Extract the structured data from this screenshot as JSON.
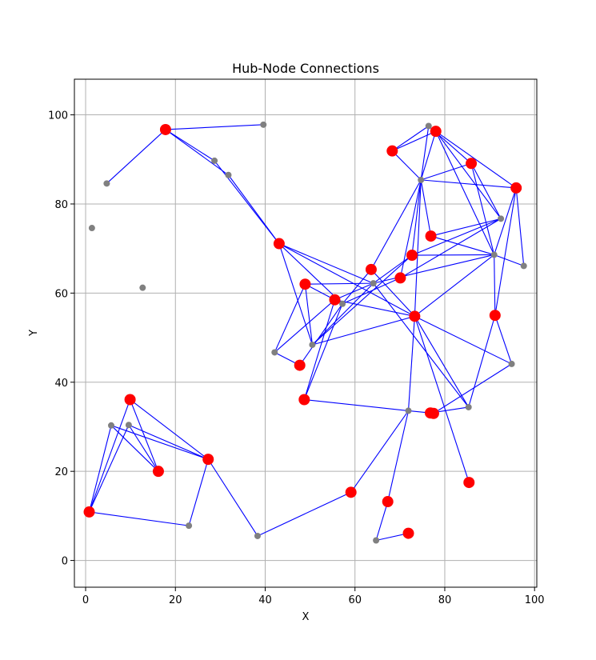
{
  "chart_data": {
    "type": "scatter",
    "title": "Hub-Node Connections",
    "xlabel": "X",
    "ylabel": "Y",
    "xlim": [
      -2.5,
      100.5
    ],
    "ylim": [
      -6,
      108
    ],
    "xticks": [
      0,
      20,
      40,
      60,
      80,
      100
    ],
    "yticks": [
      0,
      20,
      40,
      60,
      80,
      100
    ],
    "grid": true,
    "colors": {
      "hub": "#ff0000",
      "node": "#808080",
      "edge": "#0000ff"
    },
    "hubs": [
      {
        "x": 17.8,
        "y": 96.7
      },
      {
        "x": 43.1,
        "y": 71.1
      },
      {
        "x": 48.9,
        "y": 62.0
      },
      {
        "x": 55.5,
        "y": 58.5
      },
      {
        "x": 63.6,
        "y": 65.3
      },
      {
        "x": 70.1,
        "y": 63.4
      },
      {
        "x": 72.7,
        "y": 68.5
      },
      {
        "x": 73.3,
        "y": 54.8
      },
      {
        "x": 76.9,
        "y": 72.8
      },
      {
        "x": 68.3,
        "y": 91.9
      },
      {
        "x": 78.0,
        "y": 96.3
      },
      {
        "x": 85.9,
        "y": 89.1
      },
      {
        "x": 95.9,
        "y": 83.6
      },
      {
        "x": 91.2,
        "y": 55.0
      },
      {
        "x": 47.7,
        "y": 43.8
      },
      {
        "x": 48.7,
        "y": 36.1
      },
      {
        "x": 76.8,
        "y": 33.1
      },
      {
        "x": 77.5,
        "y": 33.0
      },
      {
        "x": 85.4,
        "y": 17.5
      },
      {
        "x": 9.9,
        "y": 36.1
      },
      {
        "x": 16.2,
        "y": 20.0
      },
      {
        "x": 27.3,
        "y": 22.7
      },
      {
        "x": 0.8,
        "y": 10.9
      },
      {
        "x": 59.1,
        "y": 15.3
      },
      {
        "x": 67.3,
        "y": 13.2
      },
      {
        "x": 71.9,
        "y": 6.1
      }
    ],
    "nodes": [
      {
        "x": 39.6,
        "y": 97.8
      },
      {
        "x": 28.7,
        "y": 89.7
      },
      {
        "x": 31.8,
        "y": 86.5
      },
      {
        "x": 4.7,
        "y": 84.6
      },
      {
        "x": 1.4,
        "y": 74.6
      },
      {
        "x": 12.7,
        "y": 61.2
      },
      {
        "x": 76.4,
        "y": 97.5
      },
      {
        "x": 74.7,
        "y": 85.4
      },
      {
        "x": 92.5,
        "y": 76.7
      },
      {
        "x": 91.0,
        "y": 68.6
      },
      {
        "x": 97.6,
        "y": 66.1
      },
      {
        "x": 64.1,
        "y": 62.2
      },
      {
        "x": 57.2,
        "y": 57.6
      },
      {
        "x": 50.5,
        "y": 48.4
      },
      {
        "x": 42.1,
        "y": 46.7
      },
      {
        "x": 94.9,
        "y": 44.1
      },
      {
        "x": 85.3,
        "y": 34.4
      },
      {
        "x": 71.9,
        "y": 33.6
      },
      {
        "x": 5.7,
        "y": 30.3
      },
      {
        "x": 9.6,
        "y": 30.4
      },
      {
        "x": 23.0,
        "y": 7.8
      },
      {
        "x": 38.3,
        "y": 5.5
      },
      {
        "x": 64.7,
        "y": 4.5
      }
    ],
    "edges": [
      [
        [
          4.7,
          84.6
        ],
        [
          17.8,
          96.7
        ]
      ],
      [
        [
          17.8,
          96.7
        ],
        [
          39.6,
          97.8
        ]
      ],
      [
        [
          17.8,
          96.7
        ],
        [
          28.7,
          89.7
        ]
      ],
      [
        [
          17.8,
          96.7
        ],
        [
          31.8,
          86.5
        ]
      ],
      [
        [
          28.7,
          89.7
        ],
        [
          43.1,
          71.1
        ]
      ],
      [
        [
          31.8,
          86.5
        ],
        [
          43.1,
          71.1
        ]
      ],
      [
        [
          43.1,
          71.1
        ],
        [
          50.5,
          48.4
        ]
      ],
      [
        [
          43.1,
          71.1
        ],
        [
          64.1,
          62.2
        ]
      ],
      [
        [
          43.1,
          71.1
        ],
        [
          57.2,
          57.6
        ]
      ],
      [
        [
          43.1,
          71.1
        ],
        [
          73.3,
          54.8
        ]
      ],
      [
        [
          48.9,
          62.0
        ],
        [
          42.1,
          46.7
        ]
      ],
      [
        [
          48.9,
          62.0
        ],
        [
          64.1,
          62.2
        ]
      ],
      [
        [
          48.9,
          62.0
        ],
        [
          57.2,
          57.6
        ]
      ],
      [
        [
          48.9,
          62.0
        ],
        [
          50.5,
          48.4
        ]
      ],
      [
        [
          42.1,
          46.7
        ],
        [
          55.5,
          58.5
        ]
      ],
      [
        [
          42.1,
          46.7
        ],
        [
          47.7,
          43.8
        ]
      ],
      [
        [
          47.7,
          43.8
        ],
        [
          57.2,
          57.6
        ]
      ],
      [
        [
          55.5,
          58.5
        ],
        [
          73.3,
          54.8
        ]
      ],
      [
        [
          55.5,
          58.5
        ],
        [
          64.1,
          62.2
        ]
      ],
      [
        [
          55.5,
          58.5
        ],
        [
          48.7,
          36.1
        ]
      ],
      [
        [
          57.2,
          57.6
        ],
        [
          63.6,
          65.3
        ]
      ],
      [
        [
          57.2,
          57.6
        ],
        [
          70.1,
          63.4
        ]
      ],
      [
        [
          50.5,
          48.4
        ],
        [
          72.7,
          68.5
        ]
      ],
      [
        [
          50.5,
          48.4
        ],
        [
          64.1,
          62.2
        ]
      ],
      [
        [
          50.5,
          48.4
        ],
        [
          73.3,
          54.8
        ]
      ],
      [
        [
          48.7,
          36.1
        ],
        [
          57.2,
          57.6
        ]
      ],
      [
        [
          48.7,
          36.1
        ],
        [
          71.9,
          33.6
        ]
      ],
      [
        [
          63.6,
          65.3
        ],
        [
          74.7,
          85.4
        ]
      ],
      [
        [
          63.6,
          65.3
        ],
        [
          73.3,
          54.8
        ]
      ],
      [
        [
          64.1,
          62.2
        ],
        [
          72.7,
          68.5
        ]
      ],
      [
        [
          64.1,
          62.2
        ],
        [
          91.0,
          68.6
        ]
      ],
      [
        [
          64.1,
          62.2
        ],
        [
          85.3,
          34.4
        ]
      ],
      [
        [
          70.1,
          63.4
        ],
        [
          74.7,
          85.4
        ]
      ],
      [
        [
          70.1,
          63.4
        ],
        [
          92.5,
          76.7
        ]
      ],
      [
        [
          68.3,
          91.9
        ],
        [
          76.4,
          97.5
        ]
      ],
      [
        [
          68.3,
          91.9
        ],
        [
          78.0,
          96.3
        ]
      ],
      [
        [
          68.3,
          91.9
        ],
        [
          74.7,
          85.4
        ]
      ],
      [
        [
          76.4,
          97.5
        ],
        [
          74.7,
          85.4
        ]
      ],
      [
        [
          76.4,
          97.5
        ],
        [
          85.9,
          89.1
        ]
      ],
      [
        [
          78.0,
          96.3
        ],
        [
          74.7,
          85.4
        ]
      ],
      [
        [
          78.0,
          96.3
        ],
        [
          92.5,
          76.7
        ]
      ],
      [
        [
          78.0,
          96.3
        ],
        [
          91.0,
          68.6
        ]
      ],
      [
        [
          78.0,
          96.3
        ],
        [
          95.9,
          83.6
        ]
      ],
      [
        [
          74.7,
          85.4
        ],
        [
          95.9,
          83.6
        ]
      ],
      [
        [
          74.7,
          85.4
        ],
        [
          85.9,
          89.1
        ]
      ],
      [
        [
          74.7,
          85.4
        ],
        [
          72.7,
          68.5
        ]
      ],
      [
        [
          74.7,
          85.4
        ],
        [
          76.9,
          72.8
        ]
      ],
      [
        [
          74.7,
          85.4
        ],
        [
          73.3,
          54.8
        ]
      ],
      [
        [
          85.9,
          89.1
        ],
        [
          91.0,
          68.6
        ]
      ],
      [
        [
          85.9,
          89.1
        ],
        [
          92.5,
          76.7
        ]
      ],
      [
        [
          95.9,
          83.6
        ],
        [
          97.6,
          66.1
        ]
      ],
      [
        [
          95.9,
          83.6
        ],
        [
          91.2,
          55.0
        ]
      ],
      [
        [
          95.9,
          83.6
        ],
        [
          91.0,
          68.6
        ]
      ],
      [
        [
          92.5,
          76.7
        ],
        [
          76.9,
          72.8
        ]
      ],
      [
        [
          92.5,
          76.7
        ],
        [
          72.7,
          68.5
        ]
      ],
      [
        [
          76.9,
          72.8
        ],
        [
          91.0,
          68.6
        ]
      ],
      [
        [
          72.7,
          68.5
        ],
        [
          91.0,
          68.6
        ]
      ],
      [
        [
          91.0,
          68.6
        ],
        [
          97.6,
          66.1
        ]
      ],
      [
        [
          91.0,
          68.6
        ],
        [
          73.3,
          54.8
        ]
      ],
      [
        [
          91.0,
          68.6
        ],
        [
          91.2,
          55.0
        ]
      ],
      [
        [
          91.2,
          55.0
        ],
        [
          94.9,
          44.1
        ]
      ],
      [
        [
          91.2,
          55.0
        ],
        [
          85.3,
          34.4
        ]
      ],
      [
        [
          73.3,
          54.8
        ],
        [
          94.9,
          44.1
        ]
      ],
      [
        [
          73.3,
          54.8
        ],
        [
          71.9,
          33.6
        ]
      ],
      [
        [
          73.3,
          54.8
        ],
        [
          85.4,
          17.5
        ]
      ],
      [
        [
          73.3,
          54.8
        ],
        [
          85.3,
          34.4
        ]
      ],
      [
        [
          94.9,
          44.1
        ],
        [
          77.5,
          33.0
        ]
      ],
      [
        [
          85.3,
          34.4
        ],
        [
          76.8,
          33.1
        ]
      ],
      [
        [
          71.9,
          33.6
        ],
        [
          76.8,
          33.1
        ]
      ],
      [
        [
          71.9,
          33.6
        ],
        [
          59.1,
          15.3
        ]
      ],
      [
        [
          71.9,
          33.6
        ],
        [
          67.3,
          13.2
        ]
      ],
      [
        [
          67.3,
          13.2
        ],
        [
          64.7,
          4.5
        ]
      ],
      [
        [
          64.7,
          4.5
        ],
        [
          71.9,
          6.1
        ]
      ],
      [
        [
          59.1,
          15.3
        ],
        [
          38.3,
          5.5
        ]
      ],
      [
        [
          38.3,
          5.5
        ],
        [
          27.3,
          22.7
        ]
      ],
      [
        [
          27.3,
          22.7
        ],
        [
          23.0,
          7.8
        ]
      ],
      [
        [
          27.3,
          22.7
        ],
        [
          9.9,
          36.1
        ]
      ],
      [
        [
          27.3,
          22.7
        ],
        [
          5.7,
          30.3
        ]
      ],
      [
        [
          27.3,
          22.7
        ],
        [
          9.6,
          30.4
        ]
      ],
      [
        [
          23.0,
          7.8
        ],
        [
          0.8,
          10.9
        ]
      ],
      [
        [
          0.8,
          10.9
        ],
        [
          9.9,
          36.1
        ]
      ],
      [
        [
          0.8,
          10.9
        ],
        [
          5.7,
          30.3
        ]
      ],
      [
        [
          0.8,
          10.9
        ],
        [
          9.6,
          30.4
        ]
      ],
      [
        [
          9.9,
          36.1
        ],
        [
          16.2,
          20.0
        ]
      ],
      [
        [
          5.7,
          30.3
        ],
        [
          16.2,
          20.0
        ]
      ],
      [
        [
          9.6,
          30.4
        ],
        [
          16.2,
          20.0
        ]
      ]
    ]
  }
}
